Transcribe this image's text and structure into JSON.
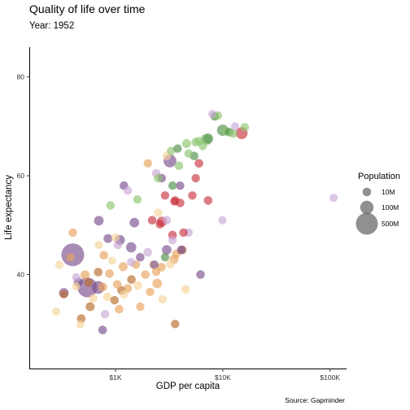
{
  "chart_data": {
    "type": "scatter",
    "title": "Quality of life over time",
    "subtitle": "Year: 1952",
    "xlabel": "GDP per capita",
    "ylabel": "Life expectancy",
    "caption": "Source: Gapminder",
    "x_scale": "log10",
    "xlim": [
      160,
      140000
    ],
    "ylim": [
      21,
      86
    ],
    "x_ticks": [
      {
        "value": 1000,
        "label": "$1K"
      },
      {
        "value": 10000,
        "label": "$10K"
      },
      {
        "value": 100000,
        "label": "$100K"
      }
    ],
    "y_ticks": [
      {
        "value": 40,
        "label": "40"
      },
      {
        "value": 60,
        "label": "60"
      },
      {
        "value": 80,
        "label": "80"
      }
    ],
    "grid": false,
    "legend": {
      "title": "Population",
      "position": "right",
      "entries": [
        {
          "label": "10M",
          "pop": 10
        },
        {
          "label": "100M",
          "pop": 100
        },
        {
          "label": "500M",
          "pop": 500
        }
      ]
    },
    "colors": {
      "africa": "#e8a35c",
      "asia": "#7b4f8f",
      "americas": "#c9a8d6",
      "europe": "#8dc46e",
      "europe_dark": "#4f8f4a",
      "oceania": "#c9363f",
      "africa_light": "#f6d49a",
      "africa_dark": "#b86a2a"
    },
    "points": [
      {
        "x": 780,
        "y": 43.9,
        "pop": 10,
        "c": "africa"
      },
      {
        "x": 3520,
        "y": 43.1,
        "pop": 12,
        "c": "africa"
      },
      {
        "x": 2450,
        "y": 38.2,
        "pop": 20,
        "c": "africa"
      },
      {
        "x": 560,
        "y": 38.4,
        "pop": 8,
        "c": "africa_dark"
      },
      {
        "x": 1180,
        "y": 41.6,
        "pop": 12,
        "c": "africa"
      },
      {
        "x": 1140,
        "y": 36.8,
        "pop": 10,
        "c": "africa_dark"
      },
      {
        "x": 930,
        "y": 42.8,
        "pop": 6,
        "c": "africa_light"
      },
      {
        "x": 580,
        "y": 33.5,
        "pop": 12,
        "c": "africa_dark"
      },
      {
        "x": 480,
        "y": 31.1,
        "pop": 10,
        "c": "africa_dark"
      },
      {
        "x": 760,
        "y": 37.5,
        "pop": 12,
        "c": "africa"
      },
      {
        "x": 880,
        "y": 40.2,
        "pop": 10,
        "c": "africa"
      },
      {
        "x": 330,
        "y": 36.0,
        "pop": 8,
        "c": "africa_dark"
      },
      {
        "x": 300,
        "y": 42.0,
        "pop": 8,
        "c": "africa_light"
      },
      {
        "x": 430,
        "y": 37.6,
        "pop": 6,
        "c": "africa_light"
      },
      {
        "x": 520,
        "y": 39.9,
        "pop": 14,
        "c": "africa"
      },
      {
        "x": 690,
        "y": 40.5,
        "pop": 10,
        "c": "africa_dark"
      },
      {
        "x": 1040,
        "y": 38.0,
        "pop": 10,
        "c": "africa"
      },
      {
        "x": 1410,
        "y": 39.0,
        "pop": 10,
        "c": "africa_dark"
      },
      {
        "x": 1620,
        "y": 37.8,
        "pop": 10,
        "c": "africa_light"
      },
      {
        "x": 1900,
        "y": 40.0,
        "pop": 10,
        "c": "africa"
      },
      {
        "x": 2240,
        "y": 42.0,
        "pop": 10,
        "c": "africa_light"
      },
      {
        "x": 2680,
        "y": 41.5,
        "pop": 10,
        "c": "africa"
      },
      {
        "x": 3250,
        "y": 42.1,
        "pop": 10,
        "c": "africa_light"
      },
      {
        "x": 3700,
        "y": 44.2,
        "pop": 10,
        "c": "africa"
      },
      {
        "x": 4200,
        "y": 45.0,
        "pop": 10,
        "c": "africa_dark"
      },
      {
        "x": 4500,
        "y": 37.0,
        "pop": 10,
        "c": "africa_light"
      },
      {
        "x": 2750,
        "y": 35.0,
        "pop": 8,
        "c": "africa_light"
      },
      {
        "x": 3600,
        "y": 30.0,
        "pop": 8,
        "c": "africa_dark"
      },
      {
        "x": 1080,
        "y": 33.0,
        "pop": 10,
        "c": "africa"
      },
      {
        "x": 840,
        "y": 35.5,
        "pop": 8,
        "c": "africa_light"
      },
      {
        "x": 620,
        "y": 35.2,
        "pop": 8,
        "c": "africa_light"
      },
      {
        "x": 470,
        "y": 29.9,
        "pop": 6,
        "c": "africa_light"
      },
      {
        "x": 280,
        "y": 32.5,
        "pop": 6,
        "c": "africa_light"
      },
      {
        "x": 400,
        "y": 48.5,
        "pop": 8,
        "c": "africa"
      },
      {
        "x": 1550,
        "y": 42.0,
        "pop": 8,
        "c": "africa"
      },
      {
        "x": 1200,
        "y": 36.0,
        "pop": 8,
        "c": "africa_light"
      },
      {
        "x": 2100,
        "y": 36.5,
        "pop": 8,
        "c": "africa"
      },
      {
        "x": 1300,
        "y": 37.2,
        "pop": 10,
        "c": "africa"
      },
      {
        "x": 980,
        "y": 34.8,
        "pop": 8,
        "c": "africa_dark"
      },
      {
        "x": 2400,
        "y": 40.6,
        "pop": 8,
        "c": "africa"
      },
      {
        "x": 1700,
        "y": 33.5,
        "pop": 8,
        "c": "africa"
      },
      {
        "x": 700,
        "y": 46.0,
        "pop": 6,
        "c": "africa_light"
      },
      {
        "x": 2000,
        "y": 62.5,
        "pop": 8,
        "c": "africa"
      },
      {
        "x": 3000,
        "y": 64.0,
        "pop": 8,
        "c": "africa_light"
      },
      {
        "x": 2500,
        "y": 52.5,
        "pop": 8,
        "c": "africa_light"
      },
      {
        "x": 1000,
        "y": 47.5,
        "pop": 8,
        "c": "africa_light"
      },
      {
        "x": 380,
        "y": 43.5,
        "pop": 6,
        "c": "africa"
      },
      {
        "x": 400,
        "y": 44.0,
        "pop": 556,
        "c": "asia"
      },
      {
        "x": 547,
        "y": 37.4,
        "pop": 372,
        "c": "asia"
      },
      {
        "x": 690,
        "y": 37.4,
        "pop": 80,
        "c": "asia"
      },
      {
        "x": 3217,
        "y": 63.0,
        "pop": 86,
        "c": "asia"
      },
      {
        "x": 1400,
        "y": 45.5,
        "pop": 30,
        "c": "asia"
      },
      {
        "x": 330,
        "y": 36.3,
        "pop": 20,
        "c": "asia"
      },
      {
        "x": 700,
        "y": 50.9,
        "pop": 20,
        "c": "asia"
      },
      {
        "x": 1100,
        "y": 47.0,
        "pop": 25,
        "c": "asia"
      },
      {
        "x": 1500,
        "y": 50.5,
        "pop": 20,
        "c": "asia"
      },
      {
        "x": 3000,
        "y": 45.0,
        "pop": 20,
        "c": "asia"
      },
      {
        "x": 4100,
        "y": 45.0,
        "pop": 10,
        "c": "asia"
      },
      {
        "x": 6200,
        "y": 40.0,
        "pop": 10,
        "c": "asia"
      },
      {
        "x": 850,
        "y": 47.3,
        "pop": 12,
        "c": "asia"
      },
      {
        "x": 450,
        "y": 38.5,
        "pop": 12,
        "c": "asia"
      },
      {
        "x": 760,
        "y": 28.8,
        "pop": 10,
        "c": "asia"
      },
      {
        "x": 1700,
        "y": 43.5,
        "pop": 10,
        "c": "asia"
      },
      {
        "x": 2300,
        "y": 42.0,
        "pop": 10,
        "c": "asia"
      },
      {
        "x": 4000,
        "y": 58.0,
        "pop": 8,
        "c": "asia"
      },
      {
        "x": 2700,
        "y": 59.5,
        "pop": 8,
        "c": "asia"
      },
      {
        "x": 1200,
        "y": 58.0,
        "pop": 10,
        "c": "asia"
      },
      {
        "x": 1300,
        "y": 57.0,
        "pop": 10,
        "c": "americas"
      },
      {
        "x": 2400,
        "y": 60.5,
        "pop": 10,
        "c": "americas"
      },
      {
        "x": 3000,
        "y": 51.0,
        "pop": 10,
        "c": "americas"
      },
      {
        "x": 2000,
        "y": 44.5,
        "pop": 10,
        "c": "americas"
      },
      {
        "x": 3400,
        "y": 47.0,
        "pop": 8,
        "c": "americas"
      },
      {
        "x": 1400,
        "y": 42.5,
        "pop": 8,
        "c": "americas"
      },
      {
        "x": 1050,
        "y": 46.0,
        "pop": 8,
        "c": "americas"
      },
      {
        "x": 800,
        "y": 32.0,
        "pop": 8,
        "c": "americas"
      },
      {
        "x": 430,
        "y": 39.5,
        "pop": 6,
        "c": "americas"
      },
      {
        "x": 4800,
        "y": 48.5,
        "pop": 8,
        "c": "americas"
      },
      {
        "x": 8000,
        "y": 72.5,
        "pop": 6,
        "c": "americas"
      },
      {
        "x": 13000,
        "y": 70.0,
        "pop": 6,
        "c": "americas"
      },
      {
        "x": 108000,
        "y": 55.5,
        "pop": 6,
        "c": "americas"
      },
      {
        "x": 9900,
        "y": 51.0,
        "pop": 6,
        "c": "americas"
      },
      {
        "x": 1600,
        "y": 55.2,
        "pop": 8,
        "c": "europe"
      },
      {
        "x": 900,
        "y": 54.0,
        "pop": 8,
        "c": "europe"
      },
      {
        "x": 2500,
        "y": 59.5,
        "pop": 8,
        "c": "europe"
      },
      {
        "x": 3900,
        "y": 62.0,
        "pop": 10,
        "c": "europe"
      },
      {
        "x": 5400,
        "y": 64.0,
        "pop": 10,
        "c": "europe_dark"
      },
      {
        "x": 4600,
        "y": 66.5,
        "pop": 12,
        "c": "europe"
      },
      {
        "x": 6000,
        "y": 67.0,
        "pop": 10,
        "c": "europe"
      },
      {
        "x": 7300,
        "y": 67.5,
        "pop": 30,
        "c": "europe_dark"
      },
      {
        "x": 7000,
        "y": 67.3,
        "pop": 50,
        "c": "europe"
      },
      {
        "x": 8400,
        "y": 72.0,
        "pop": 8,
        "c": "europe_dark"
      },
      {
        "x": 9000,
        "y": 72.2,
        "pop": 8,
        "c": "europe"
      },
      {
        "x": 10000,
        "y": 69.2,
        "pop": 50,
        "c": "europe_dark"
      },
      {
        "x": 10700,
        "y": 69.0,
        "pop": 10,
        "c": "europe"
      },
      {
        "x": 11500,
        "y": 68.8,
        "pop": 10,
        "c": "europe_dark"
      },
      {
        "x": 12500,
        "y": 68.5,
        "pop": 10,
        "c": "europe"
      },
      {
        "x": 16000,
        "y": 69.8,
        "pop": 10,
        "c": "europe"
      },
      {
        "x": 3400,
        "y": 58.0,
        "pop": 8,
        "c": "europe_dark"
      },
      {
        "x": 3300,
        "y": 65.0,
        "pop": 8,
        "c": "europe"
      },
      {
        "x": 3800,
        "y": 65.5,
        "pop": 8,
        "c": "europe_dark"
      },
      {
        "x": 2900,
        "y": 43.5,
        "pop": 8,
        "c": "europe_dark"
      },
      {
        "x": 4800,
        "y": 64.5,
        "pop": 8,
        "c": "europe"
      },
      {
        "x": 5600,
        "y": 66.8,
        "pop": 10,
        "c": "europe"
      },
      {
        "x": 6500,
        "y": 66.0,
        "pop": 8,
        "c": "europe"
      },
      {
        "x": 15000,
        "y": 68.6,
        "pop": 60,
        "c": "oceania"
      },
      {
        "x": 2700,
        "y": 50.7,
        "pop": 25,
        "c": "oceania"
      },
      {
        "x": 2600,
        "y": 50.2,
        "pop": 10,
        "c": "oceania"
      },
      {
        "x": 3550,
        "y": 54.8,
        "pop": 8,
        "c": "oceania"
      },
      {
        "x": 5600,
        "y": 59.5,
        "pop": 8,
        "c": "oceania"
      },
      {
        "x": 6000,
        "y": 62.5,
        "pop": 10,
        "c": "oceania"
      },
      {
        "x": 7300,
        "y": 55.0,
        "pop": 10,
        "c": "oceania"
      },
      {
        "x": 4300,
        "y": 48.5,
        "pop": 8,
        "c": "oceania"
      },
      {
        "x": 3400,
        "y": 48.0,
        "pop": 10,
        "c": "oceania"
      },
      {
        "x": 4000,
        "y": 54.5,
        "pop": 10,
        "c": "oceania"
      },
      {
        "x": 2200,
        "y": 51.0,
        "pop": 10,
        "c": "oceania"
      },
      {
        "x": 3600,
        "y": 55.0,
        "pop": 8,
        "c": "oceania"
      },
      {
        "x": 5200,
        "y": 56.0,
        "pop": 8,
        "c": "oceania"
      },
      {
        "x": 2900,
        "y": 56.0,
        "pop": 8,
        "c": "oceania"
      }
    ]
  }
}
